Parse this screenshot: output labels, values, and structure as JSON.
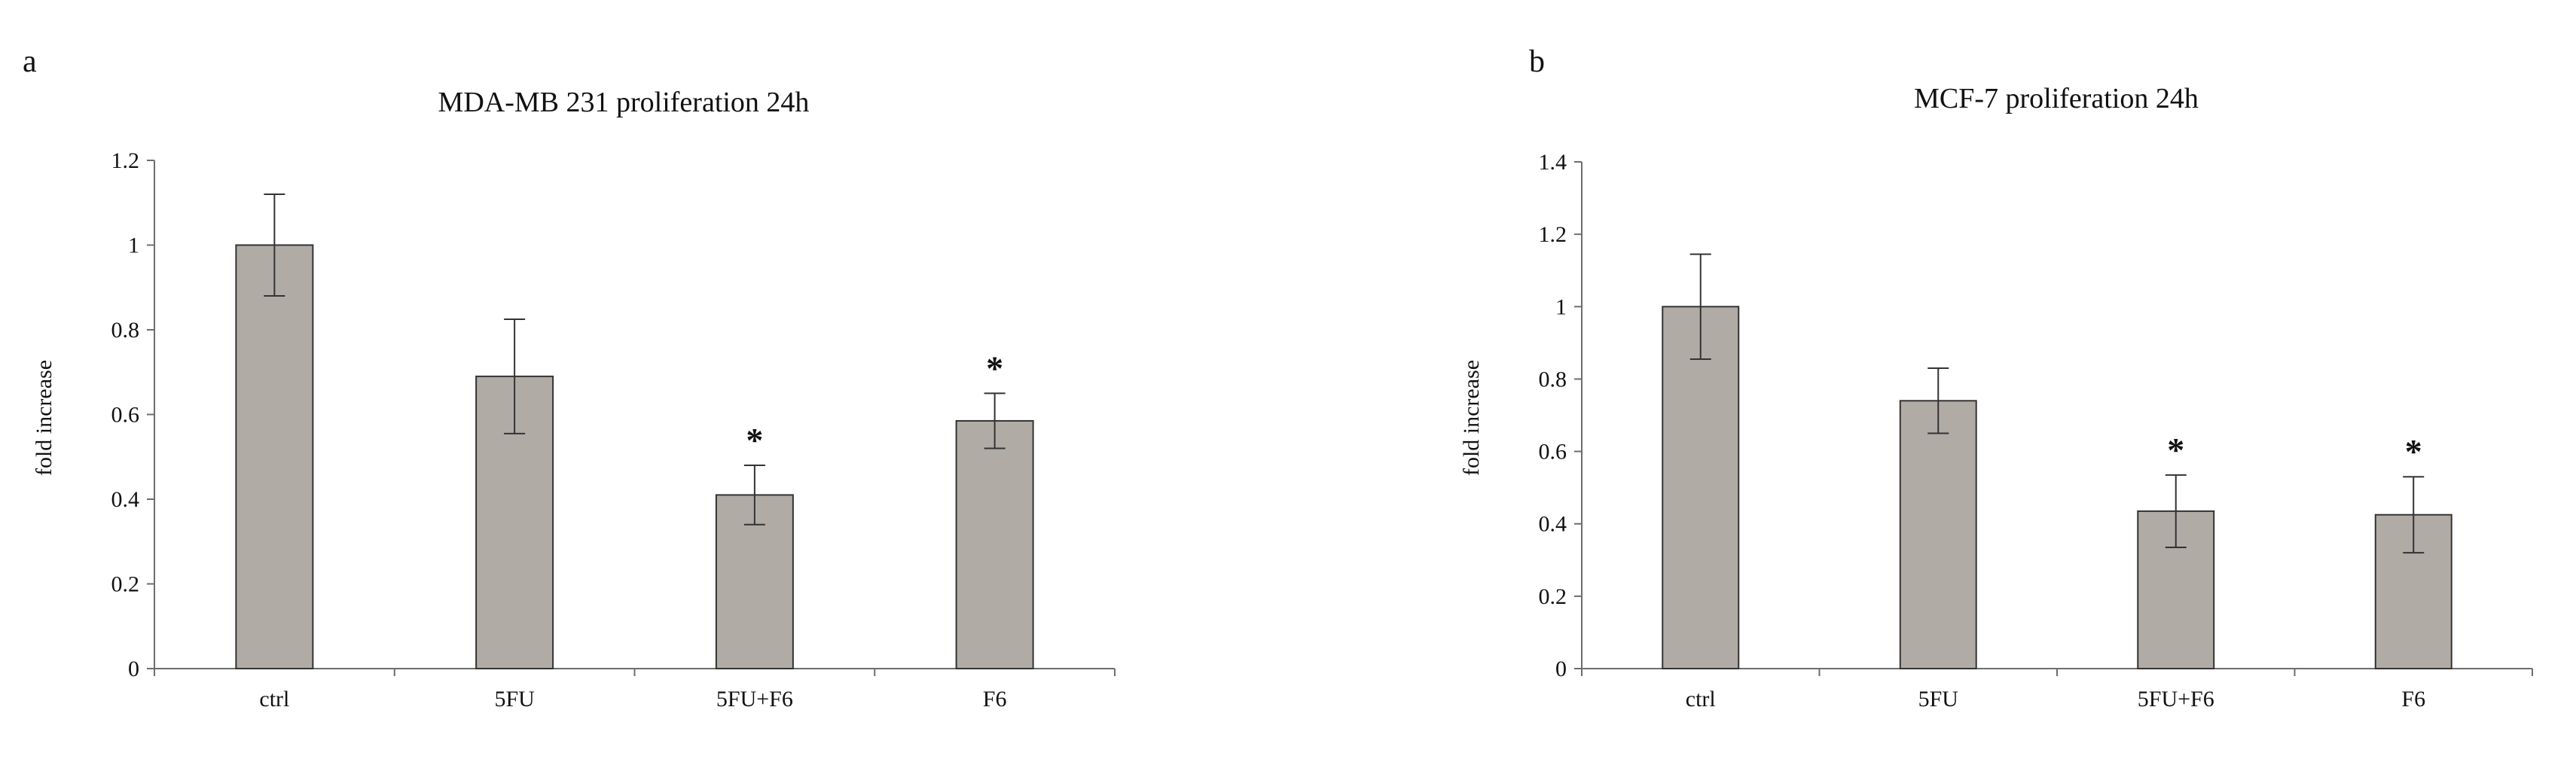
{
  "chart_data": [
    {
      "panel_label": "a",
      "type": "bar",
      "title": "MDA-MB 231 proliferation  24h",
      "xlabel": "",
      "ylabel": "fold increase",
      "ylim": [
        0,
        1.2
      ],
      "yticks": [
        "0",
        "0.2",
        "0.4",
        "0.6",
        "0.8",
        "1",
        "1.2"
      ],
      "categories": [
        "ctrl",
        "5FU",
        "5FU+F6",
        "F6"
      ],
      "values": [
        1.0,
        0.69,
        0.41,
        0.585
      ],
      "errors": [
        0.12,
        0.135,
        0.07,
        0.065
      ],
      "significance": [
        "",
        "",
        "*",
        "*"
      ],
      "grid": false,
      "bar_color": "#b1aba6"
    },
    {
      "panel_label": "b",
      "type": "bar",
      "title": "MCF-7 proliferation  24h",
      "xlabel": "",
      "ylabel": "fold increase",
      "ylim": [
        0,
        1.4
      ],
      "yticks": [
        "0",
        "0.2",
        "0.4",
        "0.6",
        "0.8",
        "1",
        "1.2",
        "1.4"
      ],
      "categories": [
        "ctrl",
        "5FU",
        "5FU+F6",
        "F6"
      ],
      "values": [
        1.0,
        0.74,
        0.435,
        0.425
      ],
      "errors": [
        0.145,
        0.09,
        0.1,
        0.105
      ],
      "significance": [
        "",
        "",
        "*",
        "*"
      ],
      "grid": false,
      "bar_color": "#b1aba6"
    }
  ]
}
